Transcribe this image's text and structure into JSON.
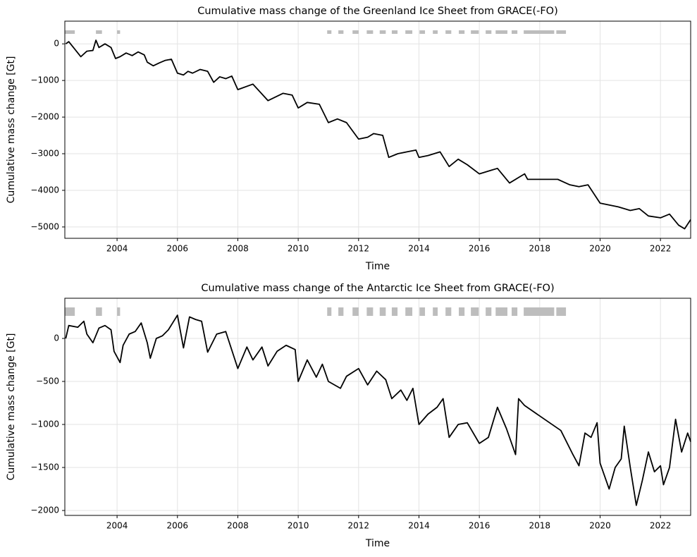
{
  "chart_data": [
    {
      "type": "line",
      "title": "Cumulative mass change of the Greenland Ice Sheet from GRACE(-FO)",
      "x_label": "Time",
      "y_label": "Cumulative mass change [Gt]",
      "xlim": [
        2002.27,
        2023.0
      ],
      "ylim": [
        -5310,
        620
      ],
      "xticks": [
        2004,
        2006,
        2008,
        2010,
        2012,
        2014,
        2016,
        2018,
        2020,
        2022
      ],
      "yticks": [
        {
          "value": -5000,
          "label": "−5000"
        },
        {
          "value": -4000,
          "label": "−4000"
        },
        {
          "value": -3000,
          "label": "−3000"
        },
        {
          "value": -2000,
          "label": "−2000"
        },
        {
          "value": -1000,
          "label": "−1000"
        },
        0
      ],
      "grid": true,
      "gap_color": "#bdbdbd",
      "gaps": [
        [
          2002.27,
          2002.6
        ],
        [
          2003.3,
          2003.5
        ],
        [
          2004.0,
          2004.1
        ],
        [
          2010.96,
          2011.1
        ],
        [
          2011.33,
          2011.5
        ],
        [
          2011.8,
          2012.0
        ],
        [
          2012.27,
          2012.48
        ],
        [
          2012.7,
          2012.9
        ],
        [
          2013.1,
          2013.29
        ],
        [
          2013.55,
          2013.78
        ],
        [
          2014.02,
          2014.2
        ],
        [
          2014.46,
          2014.62
        ],
        [
          2014.88,
          2015.07
        ],
        [
          2015.32,
          2015.51
        ],
        [
          2015.72,
          2015.98
        ],
        [
          2016.21,
          2016.4
        ],
        [
          2016.54,
          2016.93
        ],
        [
          2017.07,
          2017.26
        ],
        [
          2017.47,
          2018.48
        ],
        [
          2018.55,
          2018.87
        ]
      ],
      "x": [
        2002.3,
        2002.4,
        2002.8,
        2003.0,
        2003.2,
        2003.3,
        2003.4,
        2003.6,
        2003.8,
        2003.95,
        2004.1,
        2004.3,
        2004.5,
        2004.7,
        2004.9,
        2005.0,
        2005.2,
        2005.4,
        2005.6,
        2005.8,
        2006.0,
        2006.2,
        2006.35,
        2006.5,
        2006.75,
        2007.0,
        2007.2,
        2007.4,
        2007.6,
        2007.8,
        2008.0,
        2008.5,
        2009.0,
        2009.5,
        2009.8,
        2010.0,
        2010.3,
        2010.7,
        2011.0,
        2011.3,
        2011.6,
        2012.0,
        2012.3,
        2012.5,
        2012.8,
        2013.0,
        2013.3,
        2013.6,
        2013.9,
        2014.0,
        2014.3,
        2014.7,
        2015.0,
        2015.3,
        2015.6,
        2016.0,
        2016.4,
        2016.6,
        2017.0,
        2017.3,
        2017.5,
        2017.6,
        2018.6,
        2019.0,
        2019.3,
        2019.6,
        2020.0,
        2020.3,
        2020.6,
        2021.0,
        2021.3,
        2021.6,
        2022.0,
        2022.3,
        2022.6,
        2022.8,
        2023.0
      ],
      "series": [
        {
          "color": "#000000",
          "values": [
            0,
            60,
            -350,
            -200,
            -180,
            100,
            -100,
            0,
            -100,
            -400,
            -350,
            -250,
            -320,
            -220,
            -300,
            -500,
            -600,
            -520,
            -450,
            -420,
            -800,
            -850,
            -750,
            -800,
            -700,
            -750,
            -1050,
            -900,
            -950,
            -880,
            -1250,
            -1100,
            -1550,
            -1350,
            -1400,
            -1750,
            -1600,
            -1650,
            -2150,
            -2050,
            -2150,
            -2600,
            -2550,
            -2450,
            -2500,
            -3100,
            -3000,
            -2950,
            -2900,
            -3100,
            -3050,
            -2950,
            -3350,
            -3150,
            -3300,
            -3550,
            -3450,
            -3400,
            -3800,
            -3650,
            -3550,
            -3700,
            -3700,
            -3850,
            -3900,
            -3850,
            -4350,
            -4400,
            -4450,
            -4550,
            -4500,
            -4700,
            -4750,
            -4650,
            -4950,
            -5050,
            -4800
          ]
        }
      ]
    },
    {
      "type": "line",
      "title": "Cumulative mass change of the Antarctic Ice Sheet from GRACE(-FO)",
      "x_label": "Time",
      "y_label": "Cumulative mass change [Gt]",
      "xlim": [
        2002.27,
        2023.0
      ],
      "ylim": [
        -2057,
        467
      ],
      "xticks": [
        2004,
        2006,
        2008,
        2010,
        2012,
        2014,
        2016,
        2018,
        2020,
        2022
      ],
      "yticks": [
        {
          "value": -2000,
          "label": "−2000"
        },
        {
          "value": -1500,
          "label": "−1500"
        },
        {
          "value": -1000,
          "label": "−1000"
        },
        {
          "value": -500,
          "label": "−500"
        },
        0
      ],
      "grid": true,
      "gap_color": "#bdbdbd",
      "gaps": [
        [
          2002.27,
          2002.6
        ],
        [
          2003.3,
          2003.5
        ],
        [
          2004.0,
          2004.1
        ],
        [
          2010.96,
          2011.1
        ],
        [
          2011.33,
          2011.5
        ],
        [
          2011.8,
          2012.0
        ],
        [
          2012.27,
          2012.48
        ],
        [
          2012.7,
          2012.9
        ],
        [
          2013.1,
          2013.29
        ],
        [
          2013.55,
          2013.78
        ],
        [
          2014.02,
          2014.2
        ],
        [
          2014.46,
          2014.62
        ],
        [
          2014.88,
          2015.07
        ],
        [
          2015.32,
          2015.51
        ],
        [
          2015.72,
          2015.98
        ],
        [
          2016.21,
          2016.4
        ],
        [
          2016.54,
          2016.93
        ],
        [
          2017.07,
          2017.26
        ],
        [
          2017.47,
          2018.48
        ],
        [
          2018.55,
          2018.87
        ]
      ],
      "x": [
        2002.3,
        2002.4,
        2002.7,
        2002.9,
        2003.0,
        2003.2,
        2003.4,
        2003.6,
        2003.8,
        2003.9,
        2004.1,
        2004.2,
        2004.4,
        2004.6,
        2004.8,
        2005.0,
        2005.1,
        2005.3,
        2005.5,
        2005.7,
        2006.0,
        2006.2,
        2006.4,
        2006.6,
        2006.8,
        2007.0,
        2007.3,
        2007.6,
        2008.0,
        2008.3,
        2008.5,
        2008.8,
        2009.0,
        2009.3,
        2009.6,
        2009.9,
        2010.0,
        2010.3,
        2010.6,
        2010.8,
        2011.0,
        2011.4,
        2011.6,
        2012.0,
        2012.3,
        2012.6,
        2012.9,
        2013.1,
        2013.4,
        2013.6,
        2013.8,
        2014.0,
        2014.3,
        2014.6,
        2014.8,
        2015.0,
        2015.3,
        2015.6,
        2016.0,
        2016.3,
        2016.6,
        2016.9,
        2017.2,
        2017.3,
        2017.5,
        2018.7,
        2019.1,
        2019.3,
        2019.5,
        2019.7,
        2019.9,
        2020.0,
        2020.3,
        2020.5,
        2020.7,
        2020.8,
        2021.0,
        2021.2,
        2021.4,
        2021.6,
        2021.8,
        2022.0,
        2022.1,
        2022.3,
        2022.5,
        2022.7,
        2022.9,
        2023.0
      ],
      "series": [
        {
          "color": "#000000",
          "values": [
            0,
            150,
            130,
            200,
            50,
            -50,
            120,
            150,
            100,
            -150,
            -280,
            -80,
            50,
            80,
            180,
            -50,
            -230,
            0,
            30,
            100,
            270,
            -110,
            250,
            220,
            200,
            -160,
            50,
            80,
            -350,
            -100,
            -250,
            -100,
            -320,
            -150,
            -80,
            -130,
            -500,
            -250,
            -450,
            -300,
            -500,
            -580,
            -440,
            -350,
            -540,
            -380,
            -480,
            -700,
            -600,
            -720,
            -580,
            -1000,
            -880,
            -800,
            -700,
            -1150,
            -1000,
            -980,
            -1220,
            -1150,
            -800,
            -1050,
            -1350,
            -700,
            -780,
            -1070,
            -1350,
            -1480,
            -1100,
            -1150,
            -980,
            -1450,
            -1750,
            -1500,
            -1400,
            -1020,
            -1500,
            -1940,
            -1650,
            -1320,
            -1550,
            -1480,
            -1700,
            -1500,
            -940,
            -1320,
            -1100,
            -1200
          ]
        }
      ]
    }
  ]
}
